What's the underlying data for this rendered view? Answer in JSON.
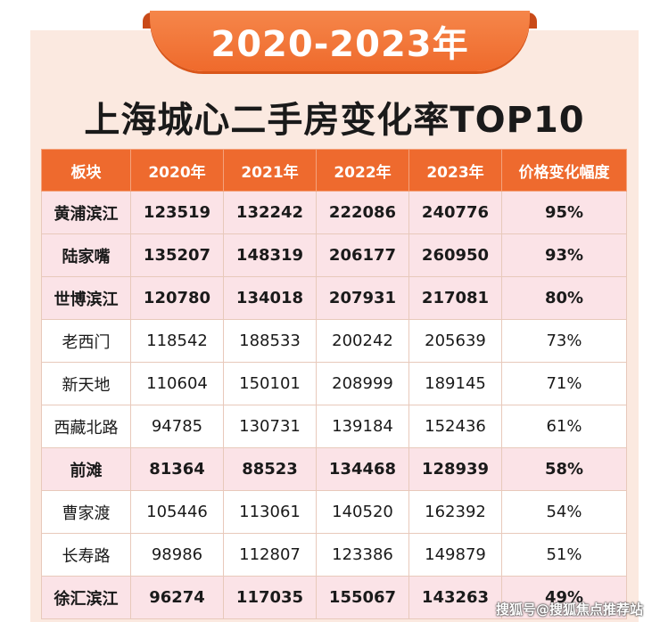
{
  "banner": {
    "title": "2020-2023年"
  },
  "heading": {
    "title": "上海城心二手房变化率TOP10"
  },
  "table": {
    "headers": [
      "板块",
      "2020年",
      "2021年",
      "2022年",
      "2023年",
      "价格变化幅度"
    ],
    "rows": [
      {
        "highlight": true,
        "cells": [
          "黄浦滨江",
          "123519",
          "132242",
          "222086",
          "240776",
          "95%"
        ]
      },
      {
        "highlight": true,
        "cells": [
          "陆家嘴",
          "135207",
          "148319",
          "206177",
          "260950",
          "93%"
        ]
      },
      {
        "highlight": true,
        "cells": [
          "世博滨江",
          "120780",
          "134018",
          "207931",
          "217081",
          "80%"
        ]
      },
      {
        "highlight": false,
        "cells": [
          "老西门",
          "118542",
          "188533",
          "200242",
          "205639",
          "73%"
        ]
      },
      {
        "highlight": false,
        "cells": [
          "新天地",
          "110604",
          "150101",
          "208999",
          "189145",
          "71%"
        ]
      },
      {
        "highlight": false,
        "cells": [
          "西藏北路",
          "94785",
          "130731",
          "139184",
          "152436",
          "61%"
        ]
      },
      {
        "highlight": true,
        "cells": [
          "前滩",
          "81364",
          "88523",
          "134468",
          "128939",
          "58%"
        ]
      },
      {
        "highlight": false,
        "cells": [
          "曹家渡",
          "105446",
          "113061",
          "140520",
          "162392",
          "54%"
        ]
      },
      {
        "highlight": false,
        "cells": [
          "长寿路",
          "98986",
          "112807",
          "123386",
          "149879",
          "51%"
        ]
      },
      {
        "highlight": true,
        "cells": [
          "徐汇滨江",
          "96274",
          "117035",
          "155067",
          "143263",
          "49%"
        ]
      }
    ]
  },
  "watermark": {
    "text": "搜狐号@搜狐焦点推荐站"
  },
  "colors": {
    "accent": "#ee6a2e",
    "card_bg": "#fbe9e0",
    "highlight_row": "#fbe3e7"
  }
}
